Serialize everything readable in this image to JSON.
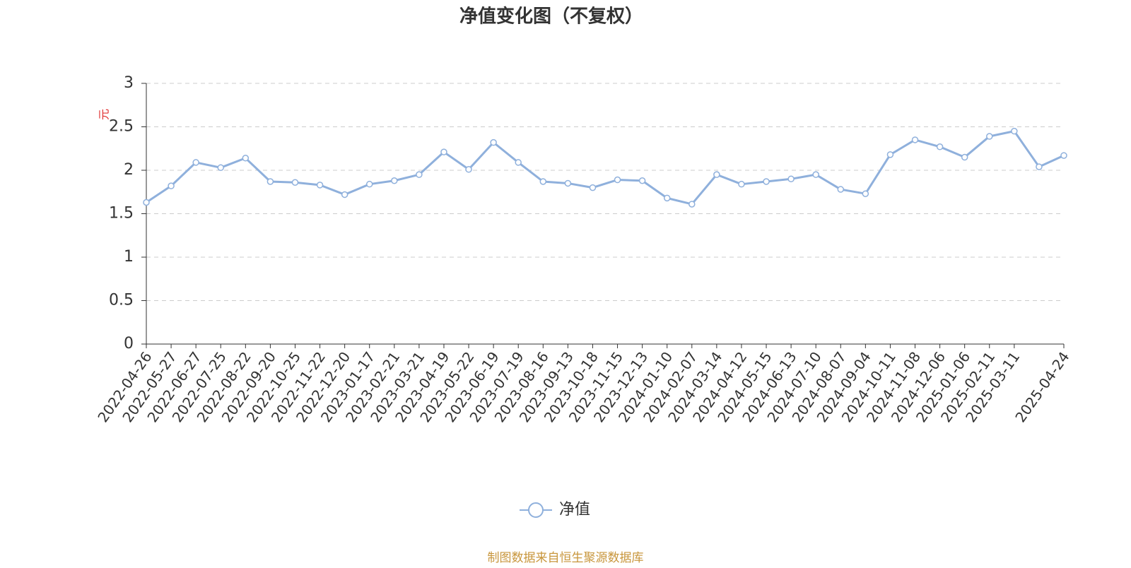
{
  "chart_data": {
    "type": "line",
    "title": "净值变化图（不复权）",
    "y_label": "元",
    "footer": "制图数据来自恒生聚源数据库",
    "categories": [
      "2022-04-26",
      "2022-05-27",
      "2022-06-27",
      "2022-07-25",
      "2022-08-22",
      "2022-09-20",
      "2022-10-25",
      "2022-11-22",
      "2022-12-20",
      "2023-01-17",
      "2023-02-21",
      "2023-03-21",
      "2023-04-19",
      "2023-05-22",
      "2023-06-19",
      "2023-07-19",
      "2023-08-16",
      "2023-09-13",
      "2023-10-18",
      "2023-11-15",
      "2023-12-13",
      "2024-01-10",
      "2024-02-07",
      "2024-03-14",
      "2024-04-12",
      "2024-05-15",
      "2024-06-13",
      "2024-07-10",
      "2024-08-07",
      "2024-09-04",
      "2024-10-11",
      "2024-11-08",
      "2024-12-06",
      "2025-01-06",
      "2025-02-11",
      "2025-03-11",
      null,
      "2025-04-24"
    ],
    "series": [
      {
        "name": "净值",
        "color": "#8fb0dc",
        "values": [
          1.63,
          1.82,
          2.09,
          2.03,
          2.14,
          1.87,
          1.86,
          1.83,
          1.72,
          1.84,
          1.88,
          1.95,
          2.21,
          2.01,
          2.32,
          2.09,
          1.87,
          1.85,
          1.8,
          1.89,
          1.88,
          1.68,
          1.61,
          1.95,
          1.84,
          1.87,
          1.9,
          1.95,
          1.78,
          1.73,
          2.18,
          2.35,
          2.27,
          2.15,
          2.39,
          2.45,
          2.04,
          2.17
        ]
      }
    ],
    "ylim": [
      0,
      3
    ],
    "yticks": [
      0,
      0.5,
      1,
      1.5,
      2,
      2.5,
      3
    ],
    "grid": true
  }
}
